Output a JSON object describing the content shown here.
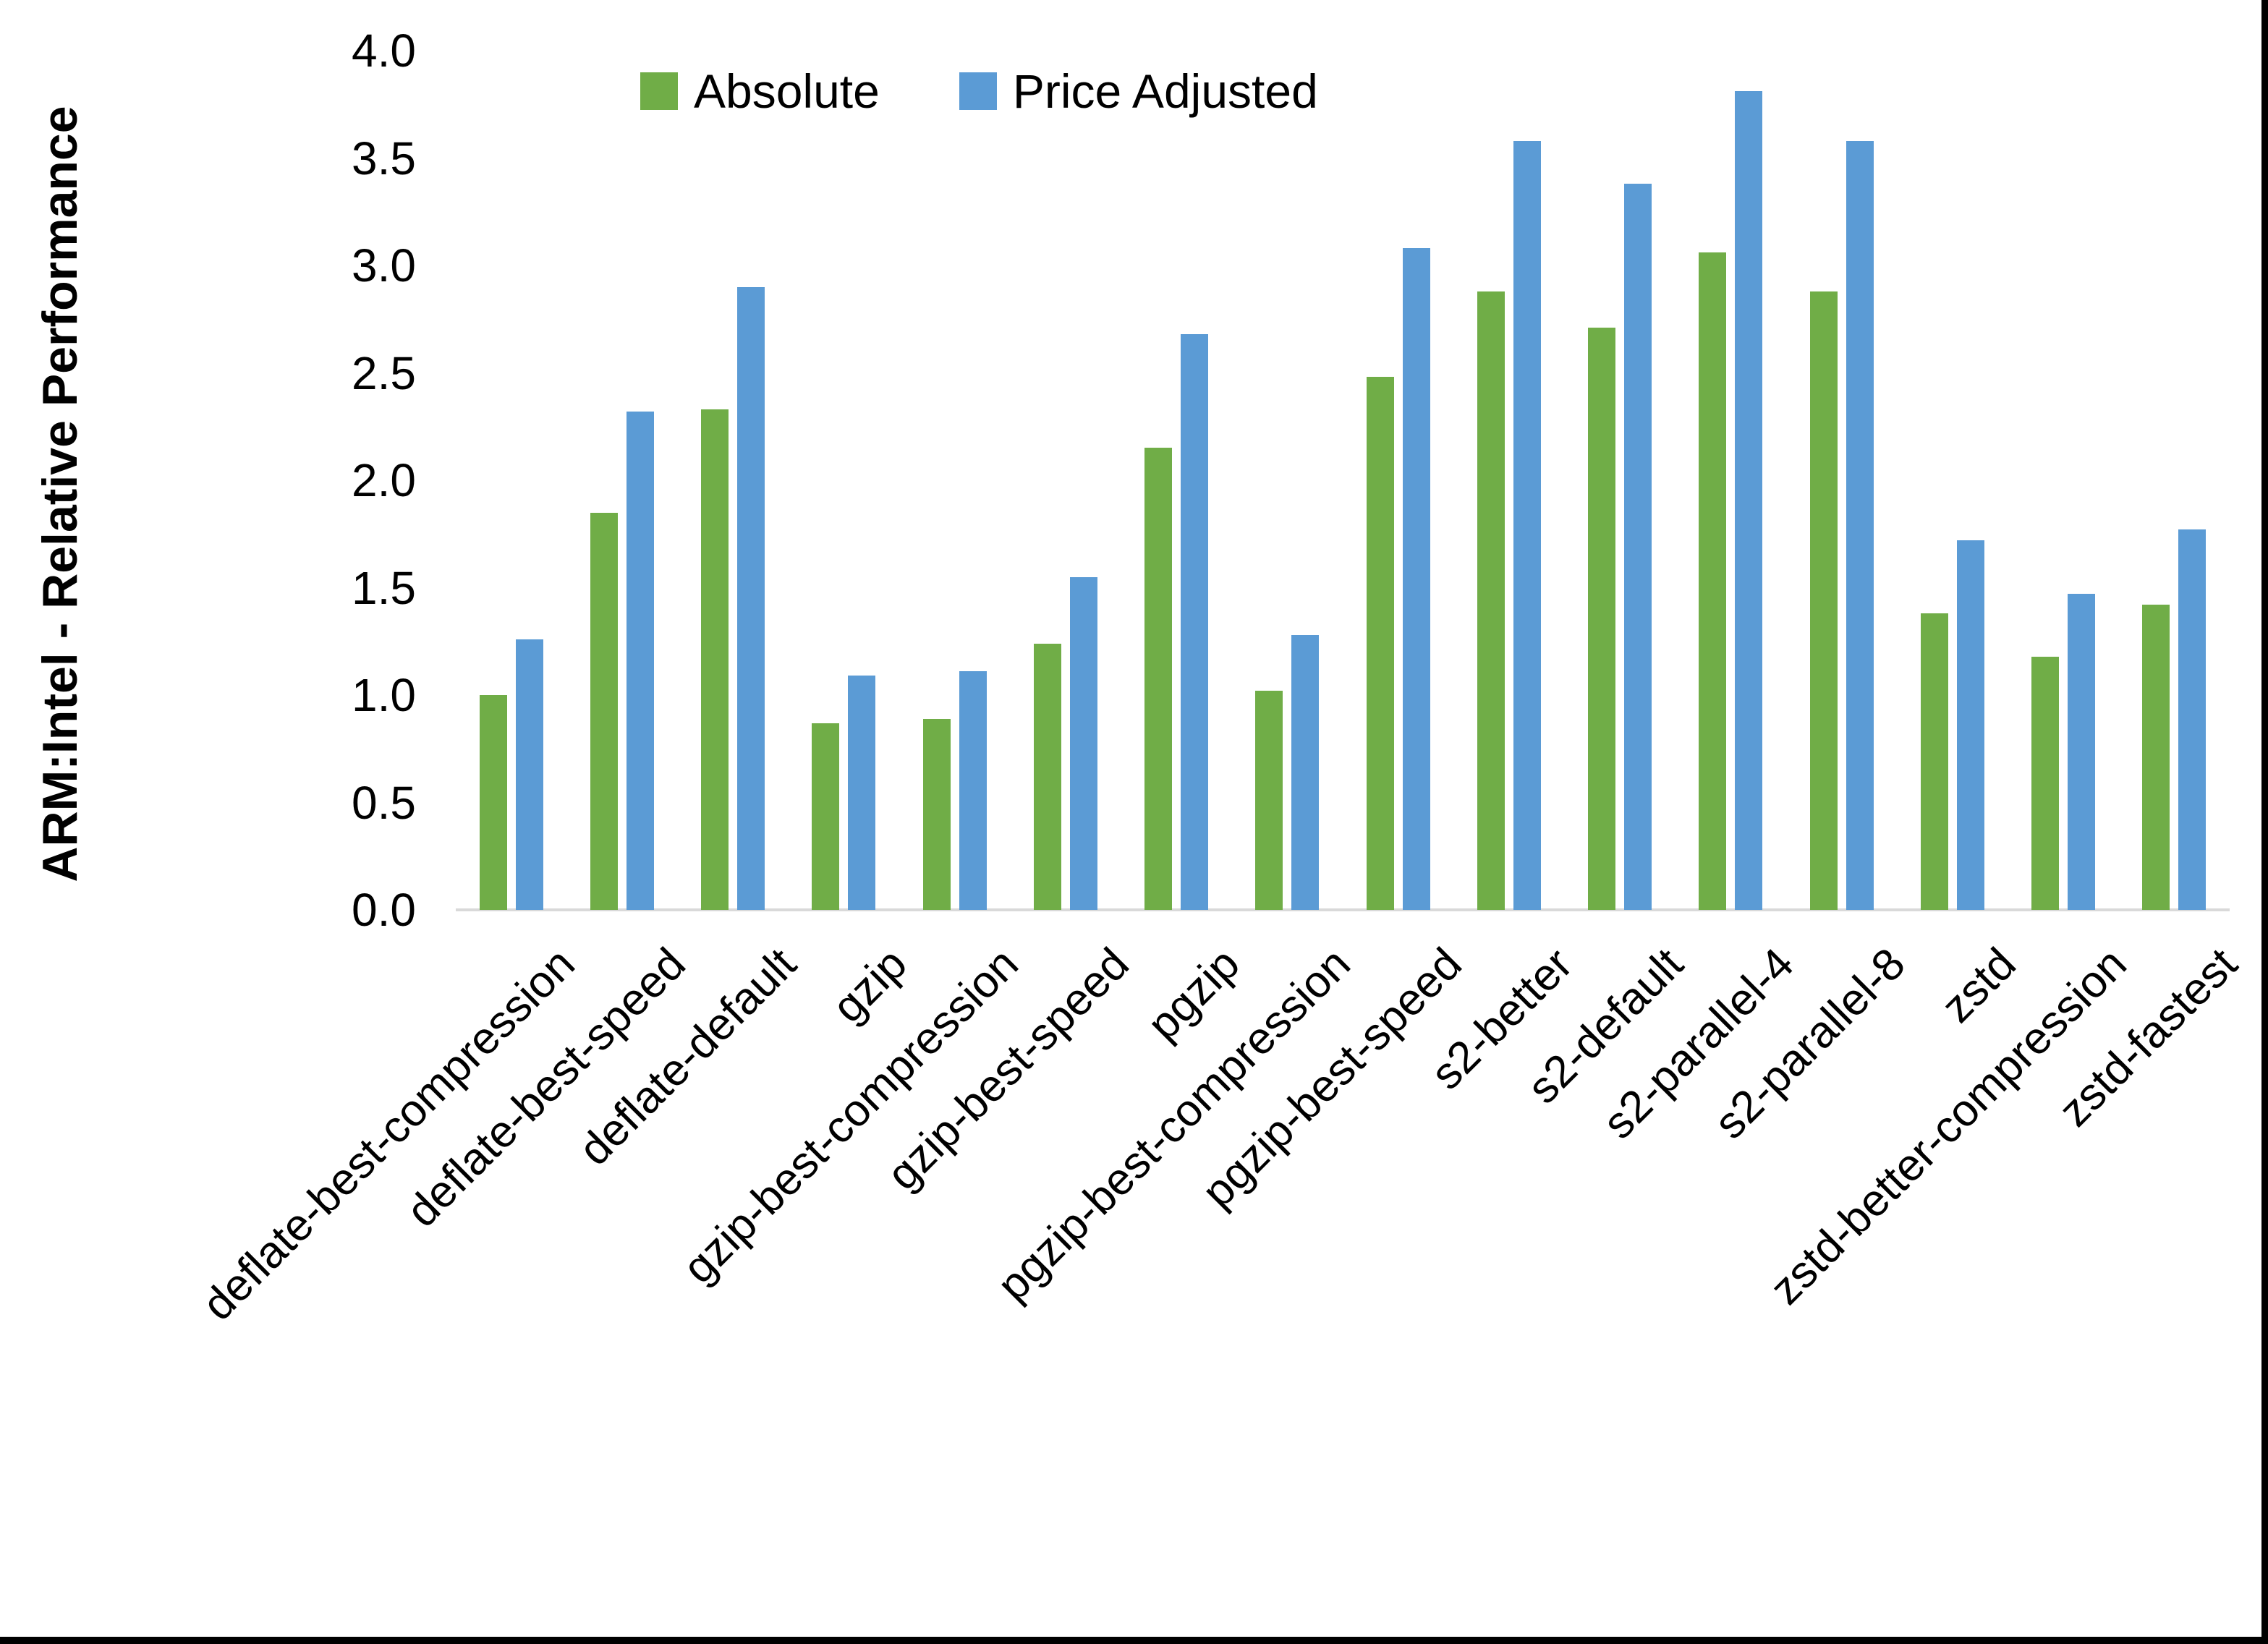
{
  "chart_data": {
    "type": "bar",
    "title": "",
    "ylabel": "ARM:Intel - Relative Performance",
    "xlabel": "",
    "categories": [
      "deflate-best-compression",
      "deflate-best-speed",
      "deflate-default",
      "gzip",
      "gzip-best-compression",
      "gzip-best-speed",
      "pgzip",
      "pgzip-best-compression",
      "pgzip-best-speed",
      "s2-better",
      "s2-default",
      "s2-parallel-4",
      "s2-parallel-8",
      "zstd",
      "zstd-better-compression",
      "zstd-fastest"
    ],
    "series": [
      {
        "name": "Absolute",
        "color": "#70AD47",
        "values": [
          1.0,
          1.85,
          2.33,
          0.87,
          0.89,
          1.24,
          2.15,
          1.02,
          2.48,
          2.88,
          2.71,
          3.06,
          2.88,
          1.38,
          1.18,
          1.42
        ]
      },
      {
        "name": "Price Adjusted",
        "color": "#5B9BD5",
        "values": [
          1.26,
          2.32,
          2.9,
          1.09,
          1.11,
          1.55,
          2.68,
          1.28,
          3.08,
          3.58,
          3.38,
          3.81,
          3.58,
          1.72,
          1.47,
          1.77
        ]
      }
    ],
    "ylim": [
      0,
      4.0
    ],
    "yticks": [
      "0.0",
      "0.5",
      "1.0",
      "1.5",
      "2.0",
      "2.5",
      "3.0",
      "3.5",
      "4.0"
    ],
    "grid": false,
    "legend_position": "top-center",
    "axis_line_color": "#D9D9D9",
    "background": "#FFFFFF"
  }
}
